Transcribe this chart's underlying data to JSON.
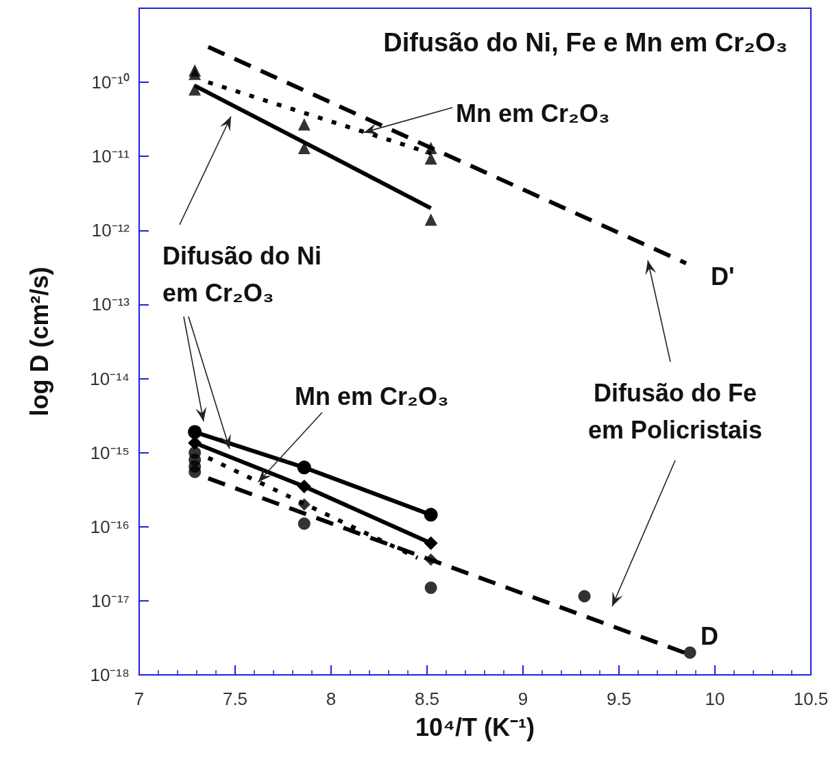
{
  "chart_data": {
    "type": "scatter",
    "title": "Difusão do Ni, Fe e Mn em Cr₂O₃",
    "xlabel": "10⁴/T (K⁻¹)",
    "ylabel": "log D (cm²/s)",
    "log": "y",
    "grid": false,
    "xlim": [
      7,
      10.5
    ],
    "xticks": [
      7,
      7.5,
      8,
      8.5,
      9,
      9.5,
      10,
      10.5
    ],
    "ylim": [
      1e-18,
      1e-09
    ],
    "yticks": [
      {
        "value": 1e-18,
        "label": "10⁻¹⁸"
      },
      {
        "value": 1e-17,
        "label": "10⁻¹⁷"
      },
      {
        "value": 1e-16,
        "label": "10⁻¹⁶"
      },
      {
        "value": 1e-15,
        "label": "10⁻¹⁵"
      },
      {
        "value": 1e-14,
        "label": "10⁻¹⁴"
      },
      {
        "value": 1e-13,
        "label": "10⁻¹³"
      },
      {
        "value": 1e-12,
        "label": "10⁻¹²"
      },
      {
        "value": 1e-11,
        "label": "10⁻¹¹"
      },
      {
        "value": 1e-10,
        "label": "10⁻¹⁰"
      },
      {
        "value": 1e-09,
        "label": null
      }
    ],
    "series": [
      {
        "type": "line",
        "line_style": "solid",
        "marker": "none",
        "color": "#000000",
        "x": [
          7.29,
          8.52
        ],
        "values": [
          9e-11,
          2e-12
        ]
      },
      {
        "marker": "triangle",
        "color": "#000000",
        "x": [
          7.29,
          7.86,
          7.86,
          8.52
        ],
        "values": [
          8e-11,
          2.7e-11,
          1.3e-11,
          1.4e-12
        ]
      },
      {
        "type": "line",
        "line_style": "dotted",
        "marker": "none",
        "color": "#000000",
        "x": [
          7.36,
          8.52
        ],
        "values": [
          1e-10,
          1.1e-11
        ]
      },
      {
        "marker": "triangle",
        "color": "#000000",
        "x": [
          7.29,
          7.29,
          8.52,
          8.52
        ],
        "values": [
          1.45e-10,
          1.3e-10,
          1.3e-11,
          9.4e-12
        ]
      },
      {
        "type": "line",
        "line_style": "dashed",
        "marker": "none",
        "color": "#000000",
        "x": [
          7.36,
          9.85
        ],
        "values": [
          3e-10,
          3.6e-13
        ]
      },
      {
        "type": "line",
        "line_style": "solid",
        "marker": "circle",
        "color": "#000000",
        "x": [
          7.29,
          7.86,
          8.52
        ],
        "values": [
          1.9e-15,
          6.3e-16,
          1.45e-16
        ]
      },
      {
        "type": "line",
        "line_style": "solid",
        "marker": "diamond",
        "color": "#000000",
        "x": [
          7.29,
          7.86,
          8.52
        ],
        "values": [
          1.35e-15,
          3.5e-16,
          6e-17
        ]
      },
      {
        "type": "line",
        "line_style": "dotted",
        "marker": "none",
        "color": "#000000",
        "x": [
          7.36,
          8.45
        ],
        "values": [
          8.5e-16,
          3.8e-17
        ]
      },
      {
        "type": "line",
        "line_style": "dashed",
        "marker": "none",
        "color": "#000000",
        "x": [
          7.36,
          9.84
        ],
        "values": [
          4.5e-16,
          2e-18
        ]
      },
      {
        "marker": "diamond",
        "color": "#000000",
        "x": [
          7.86,
          8.52
        ],
        "values": [
          2e-16,
          3.6e-17
        ]
      },
      {
        "marker": "circle",
        "color": "#000000",
        "x": [
          7.29,
          7.29,
          7.29,
          7.29,
          7.86,
          8.52,
          9.32,
          9.87
        ],
        "values": [
          1e-15,
          8e-16,
          6.5e-16,
          5.5e-16,
          1.1e-16,
          1.5e-17,
          1.15e-17,
          2e-18
        ]
      }
    ],
    "annotations": [
      {
        "text": "Mn em Cr₂O₃",
        "x": 8.17,
        "y": 2.1e-11
      },
      "Difusão do Ni\nem Cr₂O₃",
      {
        "text": "Mn em Cr₂O₃",
        "x": 7.62,
        "y": 4e-16
      },
      "Difusão do Fe\nem Policristais",
      "D'",
      "D"
    ]
  }
}
